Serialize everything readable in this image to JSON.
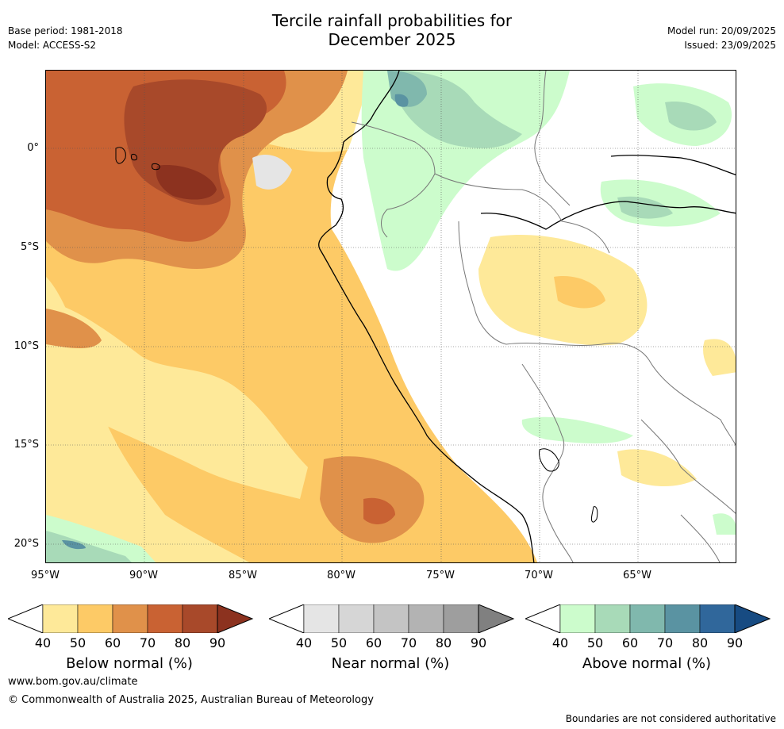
{
  "title_line1": "Tercile rainfall probabilities for",
  "title_line2": "December 2025",
  "meta_left": {
    "base_period": "Base period: 1981-2018",
    "model": "Model: ACCESS-S2"
  },
  "meta_right": {
    "model_run": "Model run: 20/09/2025",
    "issued": "Issued: 23/09/2025"
  },
  "axes": {
    "lat_labels": [
      "0°",
      "5°S",
      "10°S",
      "15°S",
      "20°S"
    ],
    "lon_labels": [
      "95°W",
      "90°W",
      "85°W",
      "80°W",
      "75°W",
      "70°W",
      "65°W"
    ]
  },
  "colorbars": [
    {
      "label": "Below normal (%)",
      "ticks": [
        "40",
        "50",
        "60",
        "70",
        "80",
        "90"
      ],
      "colors": [
        "#fee999",
        "#fdca66",
        "#e0914a",
        "#c96233",
        "#a8492a",
        "#8c321f"
      ]
    },
    {
      "label": "Near normal (%)",
      "ticks": [
        "40",
        "50",
        "60",
        "70",
        "80",
        "90"
      ],
      "colors": [
        "#e5e5e5",
        "#d6d6d6",
        "#c4c4c4",
        "#b3b3b3",
        "#9e9e9e",
        "#808080"
      ]
    },
    {
      "label": "Above normal (%)",
      "ticks": [
        "40",
        "50",
        "60",
        "70",
        "80",
        "90"
      ],
      "colors": [
        "#ccfccc",
        "#a8dab8",
        "#80b8ad",
        "#5a93a2",
        "#30679b",
        "#174b82"
      ]
    }
  ],
  "footer": {
    "url": "www.bom.gov.au/climate",
    "copyright": "© Commonwealth of Australia 2025, Australian Bureau of Meteorology",
    "disclaimer": "Boundaries are not considered authoritative"
  }
}
